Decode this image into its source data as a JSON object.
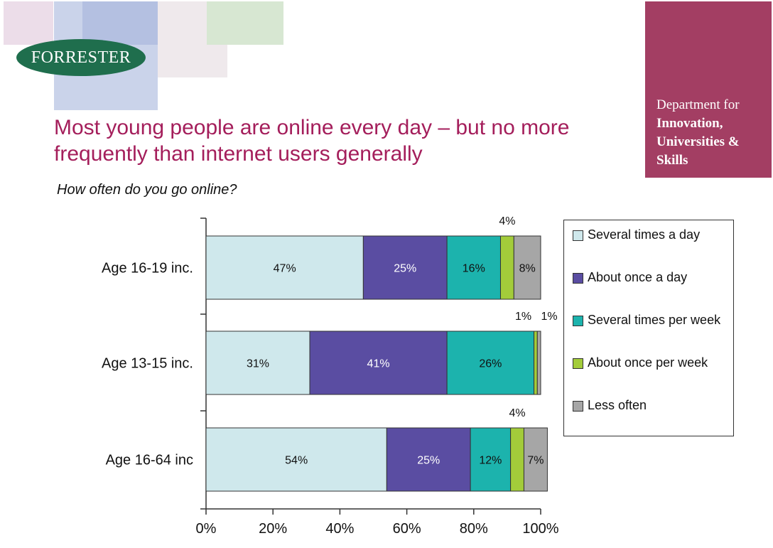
{
  "logo": {
    "text": "FORRESTER"
  },
  "department": {
    "line1": "Department for",
    "line2": "Innovation,",
    "line3": "Universities &",
    "line4": "Skills"
  },
  "title": "Most young people are online every day – but no more frequently than internet users generally",
  "subtitle": "How often do you go online?",
  "colors": {
    "several_times_a_day": "#cfe8ec",
    "about_once_a_day": "#5a4da2",
    "several_times_per_week": "#1cb3ad",
    "about_once_per_week": "#a3cc3a",
    "less_often": "#a6a6a6",
    "title": "#a41e5b",
    "department_bg": "#a33e63",
    "logo_bg": "#1f6e4d"
  },
  "chart_data": {
    "type": "bar",
    "orientation": "horizontal",
    "stacked": true,
    "categories": [
      "Age 16-19 inc.",
      "Age 13-15 inc.",
      "Age 16-64 inc"
    ],
    "series": [
      {
        "name": "Several times a day",
        "values": [
          47,
          31,
          54
        ],
        "labels": [
          "47%",
          "31%",
          "54%"
        ]
      },
      {
        "name": "About once a day",
        "values": [
          25,
          41,
          25
        ],
        "labels": [
          "25%",
          "41%",
          "25%"
        ]
      },
      {
        "name": "Several times per week",
        "values": [
          16,
          26,
          12
        ],
        "labels": [
          "16%",
          "26%",
          "12%"
        ]
      },
      {
        "name": "About once per week",
        "values": [
          4,
          1,
          4
        ],
        "labels": [
          "4%",
          "1%",
          "4%"
        ]
      },
      {
        "name": "Less often",
        "values": [
          8,
          1,
          7
        ],
        "labels": [
          "8%",
          "1%",
          "7%"
        ]
      }
    ],
    "x_ticks": [
      "0%",
      "20%",
      "40%",
      "60%",
      "80%",
      "100%"
    ],
    "xlim": [
      0,
      100
    ],
    "legend": "right"
  }
}
